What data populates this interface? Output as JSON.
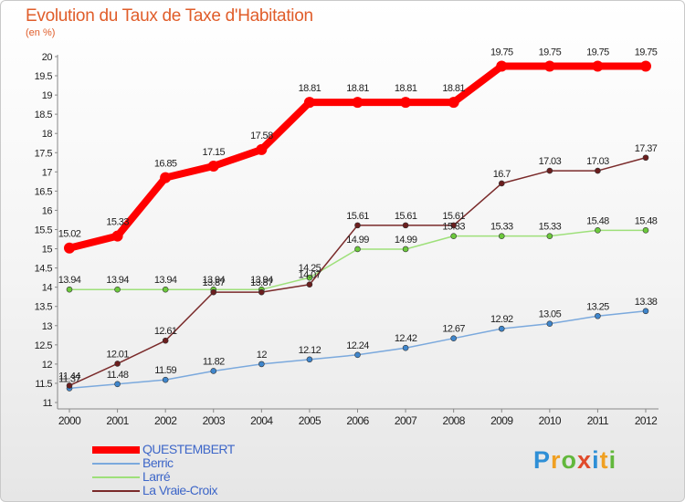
{
  "title": "Evolution du Taux de Taxe d'Habitation",
  "unit": "(en %)",
  "logo": {
    "text": "Proxiti",
    "letters": [
      {
        "ch": "P",
        "color": "#2e8fd6"
      },
      {
        "ch": "r",
        "color": "#f0a022"
      },
      {
        "ch": "o",
        "color": "#62b83c"
      },
      {
        "ch": "x",
        "color": "#e04a2a"
      },
      {
        "ch": "i",
        "color": "#2e8fd6"
      },
      {
        "ch": "t",
        "color": "#f0a022"
      },
      {
        "ch": "i",
        "color": "#62b83c"
      }
    ]
  },
  "chart_data": {
    "type": "line",
    "x": [
      "2000",
      "2001",
      "2002",
      "2003",
      "2004",
      "2005",
      "2006",
      "2007",
      "2008",
      "2009",
      "2010",
      "2011",
      "2012"
    ],
    "ylim": [
      11,
      20
    ],
    "yticks": [
      "11",
      "11.5",
      "12",
      "12.5",
      "13",
      "13.5",
      "14",
      "14.5",
      "15",
      "15.5",
      "16",
      "16.5",
      "17",
      "17.5",
      "18",
      "18.5",
      "19",
      "19.5",
      "20"
    ],
    "grid": false,
    "legend": "bottom-left",
    "series": [
      {
        "name": "QUESTEMBERT",
        "color": "#ff0000",
        "point_color": "#ff0000",
        "values": [
          15.02,
          15.33,
          16.85,
          17.15,
          17.58,
          18.81,
          18.81,
          18.81,
          18.81,
          19.75,
          19.75,
          19.75,
          19.75
        ],
        "labels": [
          "15.02",
          "15.33",
          "16.85",
          "17.15",
          "17.58",
          "18.81",
          "18.81",
          "18.81",
          "18.81",
          "19.75",
          "19.75",
          "19.75",
          "19.75"
        ]
      },
      {
        "name": "Berric",
        "color": "#7ba9dd",
        "point_color": "#3f86cc",
        "values": [
          11.37,
          11.48,
          11.59,
          11.82,
          12,
          12.12,
          12.24,
          12.42,
          12.67,
          12.92,
          13.05,
          13.25,
          13.38
        ],
        "labels": [
          "11.37",
          "11.48",
          "11.59",
          "11.82",
          "12",
          "12.12",
          "12.24",
          "12.42",
          "12.67",
          "12.92",
          "13.05",
          "13.25",
          "13.38"
        ]
      },
      {
        "name": "Larré",
        "color": "#9ee07a",
        "point_color": "#6cc93c",
        "values": [
          13.94,
          13.94,
          13.94,
          13.94,
          13.94,
          14.25,
          14.99,
          14.99,
          15.33,
          15.33,
          15.33,
          15.48,
          15.48
        ],
        "labels": [
          "13.94",
          "13.94",
          "13.94",
          "13.94",
          "13.94",
          "14.25",
          "14.99",
          "14.99",
          "15.33",
          "15.33",
          "15.33",
          "15.48",
          "15.48"
        ]
      },
      {
        "name": "La Vraie-Croix",
        "color": "#7a2a2a",
        "point_color": "#6b1e1e",
        "values": [
          11.44,
          12.01,
          12.61,
          13.87,
          13.87,
          14.07,
          15.61,
          15.61,
          15.61,
          16.7,
          17.03,
          17.03,
          17.37
        ],
        "labels": [
          "11.44",
          "12.01",
          "12.61",
          "13.87",
          "13.87",
          "14.07",
          "15.61",
          "15.61",
          "15.61",
          "16.7",
          "17.03",
          "17.03",
          "17.37"
        ]
      }
    ]
  }
}
